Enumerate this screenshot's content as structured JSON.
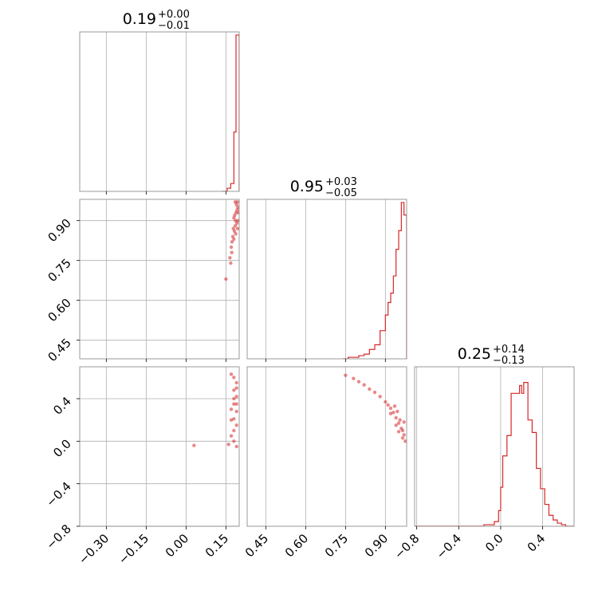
{
  "colors": {
    "series": "#d62728",
    "grid": "#b0b0b0",
    "frame": "#808080"
  },
  "chart_data": [
    {
      "type": "histogram",
      "panel": "p00",
      "title": {
        "value": "0.19",
        "plus": "+0.00",
        "minus": "−0.01"
      },
      "x_range": [
        -0.4,
        0.2
      ],
      "x_ticks": [
        -0.3,
        -0.15,
        0.0,
        0.15
      ],
      "bins": [
        {
          "x0": 0.135,
          "x1": 0.155,
          "h": 0.0
        },
        {
          "x0": 0.155,
          "x1": 0.168,
          "h": 0.02
        },
        {
          "x0": 0.168,
          "x1": 0.18,
          "h": 0.05
        },
        {
          "x0": 0.18,
          "x1": 0.188,
          "h": 0.38
        },
        {
          "x0": 0.188,
          "x1": 0.196,
          "h": 1.0
        },
        {
          "x0": 0.196,
          "x1": 0.2,
          "h": 1.0
        }
      ]
    },
    {
      "type": "scatter",
      "panel": "p10",
      "x_range": [
        -0.4,
        0.2
      ],
      "y_range": [
        0.38,
        0.98
      ],
      "x_ticks": [
        -0.3,
        -0.15,
        0.0,
        0.15
      ],
      "y_ticks": [
        0.45,
        0.6,
        0.75,
        0.9
      ],
      "y_tick_labels": [
        "0.45",
        "0.60",
        "0.75",
        "0.90"
      ],
      "points": [
        [
          0.185,
          0.97
        ],
        [
          0.19,
          0.96
        ],
        [
          0.195,
          0.95
        ],
        [
          0.192,
          0.94
        ],
        [
          0.188,
          0.93
        ],
        [
          0.183,
          0.92
        ],
        [
          0.18,
          0.91
        ],
        [
          0.186,
          0.9
        ],
        [
          0.191,
          0.89
        ],
        [
          0.185,
          0.88
        ],
        [
          0.178,
          0.87
        ],
        [
          0.182,
          0.86
        ],
        [
          0.187,
          0.85
        ],
        [
          0.176,
          0.84
        ],
        [
          0.18,
          0.83
        ],
        [
          0.173,
          0.82
        ],
        [
          0.17,
          0.8
        ],
        [
          0.172,
          0.78
        ],
        [
          0.165,
          0.76
        ],
        [
          0.168,
          0.74
        ],
        [
          0.15,
          0.68
        ],
        [
          0.193,
          0.97
        ],
        [
          0.197,
          0.93
        ],
        [
          0.196,
          0.9
        ],
        [
          0.194,
          0.87
        ]
      ]
    },
    {
      "type": "histogram",
      "panel": "p11",
      "title": {
        "value": "0.95",
        "plus": "+0.03",
        "minus": "−0.05"
      },
      "x_range": [
        0.38,
        0.98
      ],
      "x_ticks": [
        0.45,
        0.6,
        0.75,
        0.9
      ],
      "bins": [
        {
          "x0": 0.74,
          "x1": 0.76,
          "h": 0.0
        },
        {
          "x0": 0.76,
          "x1": 0.78,
          "h": 0.01
        },
        {
          "x0": 0.78,
          "x1": 0.8,
          "h": 0.01
        },
        {
          "x0": 0.8,
          "x1": 0.82,
          "h": 0.02
        },
        {
          "x0": 0.82,
          "x1": 0.84,
          "h": 0.03
        },
        {
          "x0": 0.84,
          "x1": 0.86,
          "h": 0.06
        },
        {
          "x0": 0.86,
          "x1": 0.88,
          "h": 0.09
        },
        {
          "x0": 0.88,
          "x1": 0.9,
          "h": 0.18
        },
        {
          "x0": 0.9,
          "x1": 0.91,
          "h": 0.28
        },
        {
          "x0": 0.91,
          "x1": 0.92,
          "h": 0.36
        },
        {
          "x0": 0.92,
          "x1": 0.93,
          "h": 0.42
        },
        {
          "x0": 0.93,
          "x1": 0.94,
          "h": 0.53
        },
        {
          "x0": 0.94,
          "x1": 0.95,
          "h": 0.7
        },
        {
          "x0": 0.95,
          "x1": 0.96,
          "h": 0.82
        },
        {
          "x0": 0.96,
          "x1": 0.97,
          "h": 1.0
        },
        {
          "x0": 0.97,
          "x1": 0.98,
          "h": 0.92
        }
      ]
    },
    {
      "type": "scatter",
      "panel": "p20",
      "x_range": [
        -0.4,
        0.2
      ],
      "y_range": [
        -0.8,
        0.7
      ],
      "x_ticks": [
        -0.3,
        -0.15,
        0.0,
        0.15
      ],
      "x_tick_labels": [
        "−0.30",
        "−0.15",
        "0.00",
        "0.15"
      ],
      "y_ticks": [
        -0.8,
        -0.4,
        0.0,
        0.4
      ],
      "y_tick_labels": [
        "−0.8",
        "−0.4",
        "0.0",
        "0.4"
      ],
      "points": [
        [
          0.19,
          0.55
        ],
        [
          0.18,
          0.48
        ],
        [
          0.19,
          0.42
        ],
        [
          0.18,
          0.35
        ],
        [
          0.19,
          0.28
        ],
        [
          0.18,
          0.21
        ],
        [
          0.19,
          0.15
        ],
        [
          0.18,
          0.1
        ],
        [
          0.17,
          0.05
        ],
        [
          0.18,
          0.0
        ],
        [
          0.19,
          -0.05
        ],
        [
          0.17,
          0.3
        ],
        [
          0.18,
          0.4
        ],
        [
          0.19,
          0.5
        ],
        [
          0.17,
          0.2
        ],
        [
          0.18,
          0.6
        ],
        [
          0.17,
          0.63
        ],
        [
          0.03,
          -0.04
        ],
        [
          0.16,
          -0.03
        ],
        [
          0.19,
          0.35
        ]
      ]
    },
    {
      "type": "scatter",
      "panel": "p21",
      "x_range": [
        0.38,
        0.98
      ],
      "y_range": [
        -0.8,
        0.7
      ],
      "x_ticks": [
        0.45,
        0.6,
        0.75,
        0.9
      ],
      "x_tick_labels": [
        "0.45",
        "0.60",
        "0.75",
        "0.90"
      ],
      "points": [
        [
          0.75,
          0.62
        ],
        [
          0.78,
          0.59
        ],
        [
          0.8,
          0.56
        ],
        [
          0.82,
          0.53
        ],
        [
          0.84,
          0.49
        ],
        [
          0.86,
          0.46
        ],
        [
          0.88,
          0.42
        ],
        [
          0.9,
          0.37
        ],
        [
          0.91,
          0.34
        ],
        [
          0.92,
          0.31
        ],
        [
          0.93,
          0.27
        ],
        [
          0.94,
          0.22
        ],
        [
          0.95,
          0.17
        ],
        [
          0.96,
          0.12
        ],
        [
          0.97,
          0.06
        ],
        [
          0.975,
          0.0
        ],
        [
          0.965,
          0.1
        ],
        [
          0.955,
          0.2
        ],
        [
          0.945,
          0.28
        ],
        [
          0.935,
          0.33
        ],
        [
          0.92,
          0.26
        ],
        [
          0.94,
          0.15
        ],
        [
          0.965,
          0.03
        ],
        [
          0.95,
          0.09
        ],
        [
          0.97,
          0.18
        ]
      ]
    },
    {
      "type": "histogram",
      "panel": "p22",
      "title": {
        "value": "0.25",
        "plus": "+0.14",
        "minus": "−0.13"
      },
      "x_range": [
        -0.82,
        0.7
      ],
      "x_ticks": [
        -0.8,
        -0.4,
        0.0,
        0.4
      ],
      "x_tick_labels": [
        "−0.8",
        "−0.4",
        "0.0",
        "0.4"
      ],
      "bins": [
        {
          "x0": -0.82,
          "x1": -0.16,
          "h": 0.0
        },
        {
          "x0": -0.16,
          "x1": -0.06,
          "h": 0.01
        },
        {
          "x0": -0.06,
          "x1": -0.02,
          "h": 0.03
        },
        {
          "x0": -0.02,
          "x1": 0.0,
          "h": 0.1
        },
        {
          "x0": 0.0,
          "x1": 0.02,
          "h": 0.25
        },
        {
          "x0": 0.02,
          "x1": 0.06,
          "h": 0.45
        },
        {
          "x0": 0.06,
          "x1": 0.1,
          "h": 0.58
        },
        {
          "x0": 0.1,
          "x1": 0.14,
          "h": 0.85
        },
        {
          "x0": 0.14,
          "x1": 0.18,
          "h": 0.85
        },
        {
          "x0": 0.18,
          "x1": 0.2,
          "h": 0.9
        },
        {
          "x0": 0.2,
          "x1": 0.22,
          "h": 0.85
        },
        {
          "x0": 0.22,
          "x1": 0.26,
          "h": 0.92
        },
        {
          "x0": 0.26,
          "x1": 0.3,
          "h": 0.68
        },
        {
          "x0": 0.3,
          "x1": 0.34,
          "h": 0.6
        },
        {
          "x0": 0.34,
          "x1": 0.38,
          "h": 0.37
        },
        {
          "x0": 0.38,
          "x1": 0.42,
          "h": 0.24
        },
        {
          "x0": 0.42,
          "x1": 0.46,
          "h": 0.14
        },
        {
          "x0": 0.46,
          "x1": 0.5,
          "h": 0.07
        },
        {
          "x0": 0.5,
          "x1": 0.54,
          "h": 0.04
        },
        {
          "x0": 0.54,
          "x1": 0.58,
          "h": 0.02
        },
        {
          "x0": 0.58,
          "x1": 0.62,
          "h": 0.01
        },
        {
          "x0": 0.62,
          "x1": 0.7,
          "h": 0.0
        }
      ]
    }
  ]
}
